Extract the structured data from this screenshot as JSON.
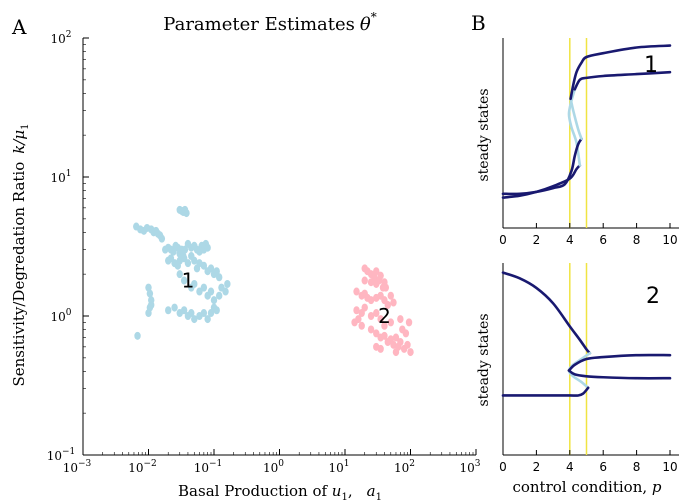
{
  "panel_labels": {
    "a": "A",
    "b": "B"
  },
  "chart_data": [
    {
      "type": "scatter",
      "title": "Parameter Estimates θ*",
      "title_main": "Parameter Estimates",
      "title_symbol": "θ",
      "title_sup": "*",
      "xlabel": "Basal Production of u1,   a1",
      "xlabel_main": "Basal Production of ",
      "xlabel_var": "u",
      "xlabel_sub": "1",
      "xlabel_sep": ",",
      "xlabel_var2": "a",
      "xlabel_sub2": "1",
      "ylabel": "Sensitivity/Degredation Ratio k/μ1",
      "ylabel_main": "Sensitivity/Degredation Ratio",
      "ylabel_var": "k/μ",
      "ylabel_sub": "1",
      "x_scale": "log",
      "y_scale": "log",
      "xlim": [
        0.001,
        1000
      ],
      "ylim": [
        0.1,
        100
      ],
      "xticks": [
        0.001,
        0.01,
        0.1,
        1,
        10,
        100,
        1000
      ],
      "xtick_labels": [
        {
          "base": "10",
          "exp": "−3"
        },
        {
          "base": "10",
          "exp": "−2"
        },
        {
          "base": "10",
          "exp": "−1"
        },
        {
          "base": "10",
          "exp": "0"
        },
        {
          "base": "10",
          "exp": "1"
        },
        {
          "base": "10",
          "exp": "2"
        },
        {
          "base": "10",
          "exp": "3"
        }
      ],
      "yticks": [
        0.1,
        1,
        10,
        100
      ],
      "ytick_labels": [
        {
          "base": "10",
          "exp": "−1"
        },
        {
          "base": "10",
          "exp": "0"
        },
        {
          "base": "10",
          "exp": "1"
        },
        {
          "base": "10",
          "exp": "2"
        }
      ],
      "grid": false,
      "annotations": [
        {
          "text": "1",
          "x": 0.04,
          "y": 1.8
        },
        {
          "text": "2",
          "x": 40,
          "y": 1.0
        }
      ],
      "series": [
        {
          "color": "#add8e6",
          "points": [
            [
              0.0065,
              4.4
            ],
            [
              0.0075,
              4.2
            ],
            [
              0.0085,
              4.1
            ],
            [
              0.0095,
              4.3
            ],
            [
              0.011,
              4.2
            ],
            [
              0.012,
              4.0
            ],
            [
              0.013,
              4.1
            ],
            [
              0.014,
              3.9
            ],
            [
              0.015,
              3.8
            ],
            [
              0.016,
              3.6
            ],
            [
              0.03,
              5.8
            ],
            [
              0.032,
              5.7
            ],
            [
              0.034,
              5.6
            ],
            [
              0.036,
              5.8
            ],
            [
              0.038,
              5.5
            ],
            [
              0.018,
              3.0
            ],
            [
              0.02,
              3.1
            ],
            [
              0.022,
              3.0
            ],
            [
              0.024,
              2.9
            ],
            [
              0.026,
              3.2
            ],
            [
              0.028,
              3.1
            ],
            [
              0.03,
              2.8
            ],
            [
              0.032,
              3.0
            ],
            [
              0.034,
              2.7
            ],
            [
              0.036,
              3.0
            ],
            [
              0.04,
              3.3
            ],
            [
              0.045,
              3.1
            ],
            [
              0.05,
              3.2
            ],
            [
              0.055,
              3.0
            ],
            [
              0.06,
              2.9
            ],
            [
              0.065,
              3.2
            ],
            [
              0.07,
              3.0
            ],
            [
              0.075,
              3.3
            ],
            [
              0.08,
              3.1
            ],
            [
              0.02,
              2.5
            ],
            [
              0.022,
              2.6
            ],
            [
              0.025,
              2.4
            ],
            [
              0.028,
              2.3
            ],
            [
              0.03,
              2.5
            ],
            [
              0.035,
              2.6
            ],
            [
              0.04,
              2.4
            ],
            [
              0.045,
              2.7
            ],
            [
              0.05,
              2.5
            ],
            [
              0.055,
              2.2
            ],
            [
              0.06,
              2.4
            ],
            [
              0.07,
              2.3
            ],
            [
              0.08,
              2.1
            ],
            [
              0.09,
              2.2
            ],
            [
              0.1,
              2.0
            ],
            [
              0.11,
              2.1
            ],
            [
              0.12,
              1.9
            ],
            [
              0.03,
              2.0
            ],
            [
              0.035,
              1.8
            ],
            [
              0.045,
              1.6
            ],
            [
              0.05,
              1.7
            ],
            [
              0.06,
              1.5
            ],
            [
              0.07,
              1.6
            ],
            [
              0.08,
              1.4
            ],
            [
              0.09,
              1.5
            ],
            [
              0.1,
              1.3
            ],
            [
              0.12,
              1.4
            ],
            [
              0.13,
              1.6
            ],
            [
              0.15,
              1.5
            ],
            [
              0.16,
              1.7
            ],
            [
              0.01,
              1.6
            ],
            [
              0.0105,
              1.45
            ],
            [
              0.011,
              1.3
            ],
            [
              0.0105,
              1.15
            ],
            [
              0.01,
              1.05
            ],
            [
              0.011,
              1.2
            ],
            [
              0.02,
              1.1
            ],
            [
              0.025,
              1.15
            ],
            [
              0.03,
              1.05
            ],
            [
              0.035,
              1.1
            ],
            [
              0.04,
              1.0
            ],
            [
              0.045,
              1.05
            ],
            [
              0.05,
              0.95
            ],
            [
              0.06,
              1.0
            ],
            [
              0.07,
              1.05
            ],
            [
              0.08,
              0.95
            ],
            [
              0.09,
              1.05
            ],
            [
              0.1,
              1.15
            ],
            [
              0.11,
              1.1
            ],
            [
              0.0068,
              0.72
            ]
          ]
        },
        {
          "color": "#ffb6c1",
          "points": [
            [
              20,
              2.2
            ],
            [
              22,
              2.1
            ],
            [
              25,
              2.0
            ],
            [
              28,
              1.9
            ],
            [
              30,
              2.1
            ],
            [
              35,
              1.95
            ],
            [
              20,
              1.8
            ],
            [
              25,
              1.75
            ],
            [
              30,
              1.7
            ],
            [
              33,
              1.8
            ],
            [
              38,
              1.6
            ],
            [
              40,
              1.75
            ],
            [
              42,
              1.6
            ],
            [
              15,
              1.5
            ],
            [
              18,
              1.4
            ],
            [
              20,
              1.45
            ],
            [
              22,
              1.35
            ],
            [
              25,
              1.3
            ],
            [
              30,
              1.35
            ],
            [
              35,
              1.4
            ],
            [
              40,
              1.3
            ],
            [
              45,
              1.2
            ],
            [
              50,
              1.4
            ],
            [
              55,
              1.25
            ],
            [
              15,
              1.1
            ],
            [
              18,
              1.05
            ],
            [
              20,
              1.15
            ],
            [
              25,
              1.0
            ],
            [
              30,
              1.05
            ],
            [
              35,
              0.95
            ],
            [
              14,
              0.9
            ],
            [
              16,
              0.95
            ],
            [
              18,
              0.85
            ],
            [
              25,
              0.8
            ],
            [
              30,
              0.75
            ],
            [
              35,
              0.7
            ],
            [
              40,
              0.72
            ],
            [
              45,
              0.65
            ],
            [
              50,
              0.68
            ],
            [
              55,
              0.62
            ],
            [
              60,
              0.7
            ],
            [
              65,
              0.6
            ],
            [
              70,
              0.65
            ],
            [
              80,
              0.58
            ],
            [
              90,
              0.62
            ],
            [
              100,
              0.55
            ],
            [
              30,
              0.6
            ],
            [
              35,
              0.58
            ],
            [
              60,
              0.55
            ],
            [
              75,
              0.8
            ],
            [
              85,
              0.75
            ],
            [
              95,
              0.9
            ],
            [
              70,
              0.95
            ],
            [
              50,
              0.9
            ],
            [
              40,
              0.85
            ]
          ]
        }
      ]
    },
    {
      "type": "line",
      "label": "1",
      "xlabel": "",
      "ylabel": "steady states",
      "xlim": [
        0,
        10
      ],
      "xticks": [
        0,
        2,
        4,
        6,
        8,
        10
      ],
      "xtick_labels": [
        "0",
        "2",
        "4",
        "6",
        "8",
        "10"
      ],
      "vlines": [
        4,
        5
      ],
      "vline_color": "#f0e442",
      "series": [
        {
          "stability": "stable",
          "color": "#191970",
          "points": [
            [
              0,
              0.16
            ],
            [
              1,
              0.17
            ],
            [
              2,
              0.19
            ],
            [
              3,
              0.22
            ],
            [
              4,
              0.26
            ],
            [
              4.4,
              0.31
            ],
            [
              4.6,
              0.33
            ]
          ]
        },
        {
          "stability": "unstable",
          "color": "#add8e6",
          "points": [
            [
              4.6,
              0.33
            ],
            [
              4.4,
              0.45
            ],
            [
              4.1,
              0.53
            ],
            [
              3.95,
              0.6
            ],
            [
              4.1,
              0.67
            ],
            [
              4.3,
              0.73
            ]
          ]
        },
        {
          "stability": "stable",
          "color": "#191970",
          "points": [
            [
              4.3,
              0.73
            ],
            [
              4.6,
              0.78
            ],
            [
              5,
              0.79
            ],
            [
              6,
              0.8
            ],
            [
              8,
              0.81
            ],
            [
              10,
              0.82
            ]
          ]
        },
        {
          "stability": "stable",
          "color": "#191970",
          "points": [
            [
              0,
              0.18
            ],
            [
              1,
              0.18
            ],
            [
              2,
              0.19
            ],
            [
              3,
              0.21
            ],
            [
              3.7,
              0.23
            ],
            [
              4.1,
              0.3
            ],
            [
              4.3,
              0.38
            ],
            [
              4.5,
              0.44
            ],
            [
              4.7,
              0.47
            ]
          ]
        },
        {
          "stability": "unstable",
          "color": "#add8e6",
          "points": [
            [
              4.7,
              0.47
            ],
            [
              4.5,
              0.52
            ],
            [
              4.2,
              0.62
            ],
            [
              4.05,
              0.68
            ]
          ]
        },
        {
          "stability": "stable",
          "color": "#191970",
          "points": [
            [
              4.05,
              0.68
            ],
            [
              4.2,
              0.75
            ],
            [
              4.4,
              0.82
            ],
            [
              4.7,
              0.87
            ],
            [
              5,
              0.9
            ],
            [
              6,
              0.92
            ],
            [
              8,
              0.95
            ],
            [
              10,
              0.96
            ]
          ]
        }
      ]
    },
    {
      "type": "line",
      "label": "2",
      "xlabel": "control condition, p",
      "xlabel_main": "control condition, ",
      "xlabel_var": "p",
      "ylabel": "steady states",
      "xlim": [
        0,
        10
      ],
      "xticks": [
        0,
        2,
        4,
        6,
        8,
        10
      ],
      "xtick_labels": [
        "0",
        "2",
        "4",
        "6",
        "8",
        "10"
      ],
      "vlines": [
        4,
        5
      ],
      "vline_color": "#f0e442",
      "series": [
        {
          "stability": "stable",
          "color": "#191970",
          "points": [
            [
              0,
              0.95
            ],
            [
              1,
              0.92
            ],
            [
              2,
              0.87
            ],
            [
              3,
              0.79
            ],
            [
              4,
              0.67
            ],
            [
              4.6,
              0.6
            ],
            [
              5,
              0.55
            ],
            [
              5.2,
              0.53
            ]
          ]
        },
        {
          "stability": "unstable",
          "color": "#add8e6",
          "points": [
            [
              5.2,
              0.53
            ],
            [
              4.7,
              0.5
            ],
            [
              4.2,
              0.47
            ],
            [
              3.95,
              0.44
            ],
            [
              4.2,
              0.41
            ],
            [
              4.7,
              0.38
            ],
            [
              5.1,
              0.35
            ]
          ]
        },
        {
          "stability": "stable",
          "color": "#191970",
          "points": [
            [
              5.1,
              0.35
            ],
            [
              4.8,
              0.32
            ],
            [
              4.5,
              0.31
            ],
            [
              4,
              0.31
            ],
            [
              3,
              0.31
            ],
            [
              2,
              0.31
            ],
            [
              1,
              0.31
            ],
            [
              0,
              0.31
            ]
          ]
        },
        {
          "stability": "stable",
          "color": "#191970",
          "points": [
            [
              3.95,
              0.44
            ],
            [
              4.3,
              0.47
            ],
            [
              5,
              0.5
            ],
            [
              6,
              0.51
            ],
            [
              8,
              0.52
            ],
            [
              10,
              0.52
            ]
          ]
        },
        {
          "stability": "stable",
          "color": "#191970",
          "points": [
            [
              3.95,
              0.44
            ],
            [
              4.3,
              0.42
            ],
            [
              5,
              0.41
            ],
            [
              6,
              0.405
            ],
            [
              8,
              0.4
            ],
            [
              10,
              0.4
            ]
          ]
        }
      ]
    }
  ]
}
